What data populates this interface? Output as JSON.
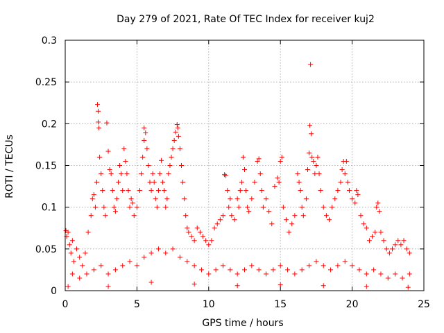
{
  "chart_data": {
    "type": "scatter",
    "title": "Day 279 of 2021, Rate Of TEC Index for receiver kuj2",
    "xlabel": "GPS time / hours",
    "ylabel": "ROTI / TECUs",
    "xlim": [
      0,
      25
    ],
    "ylim": [
      0,
      0.3
    ],
    "xticks": [
      0,
      5,
      10,
      15,
      20,
      25
    ],
    "xtick_labels": [
      "0",
      "5",
      "10",
      "15",
      "20",
      "25"
    ],
    "yticks": [
      0,
      0.05,
      0.1,
      0.15,
      0.2,
      0.25,
      0.3
    ],
    "ytick_labels": [
      "0",
      "0.05",
      "0.1",
      "0.15",
      "0.2",
      "0.25",
      "0.3"
    ],
    "grid": true,
    "marker": "+",
    "color": "#ff0000",
    "series": [
      {
        "name": "ROTI",
        "points": [
          [
            0.05,
            0.072
          ],
          [
            0.1,
            0.065
          ],
          [
            0.2,
            0.07
          ],
          [
            0.3,
            0.055
          ],
          [
            0.4,
            0.045
          ],
          [
            0.5,
            0.06
          ],
          [
            0.6,
            0.035
          ],
          [
            0.8,
            0.05
          ],
          [
            1.0,
            0.04
          ],
          [
            1.2,
            0.03
          ],
          [
            1.4,
            0.045
          ],
          [
            1.6,
            0.07
          ],
          [
            1.8,
            0.09
          ],
          [
            1.9,
            0.11
          ],
          [
            2.0,
            0.115
          ],
          [
            2.1,
            0.1
          ],
          [
            2.2,
            0.13
          ],
          [
            2.25,
            0.223
          ],
          [
            2.3,
            0.215
          ],
          [
            2.3,
            0.202
          ],
          [
            2.35,
            0.195
          ],
          [
            2.4,
            0.16
          ],
          [
            2.5,
            0.14
          ],
          [
            2.6,
            0.12
          ],
          [
            2.7,
            0.1
          ],
          [
            2.8,
            0.09
          ],
          [
            2.9,
            0.201
          ],
          [
            3.0,
            0.167
          ],
          [
            3.1,
            0.145
          ],
          [
            3.2,
            0.14
          ],
          [
            3.3,
            0.12
          ],
          [
            3.4,
            0.1
          ],
          [
            3.5,
            0.095
          ],
          [
            3.6,
            0.11
          ],
          [
            3.7,
            0.13
          ],
          [
            3.8,
            0.15
          ],
          [
            3.9,
            0.14
          ],
          [
            4.0,
            0.12
          ],
          [
            4.1,
            0.17
          ],
          [
            4.2,
            0.155
          ],
          [
            4.3,
            0.14
          ],
          [
            4.4,
            0.12
          ],
          [
            4.5,
            0.1
          ],
          [
            4.6,
            0.11
          ],
          [
            4.7,
            0.105
          ],
          [
            4.8,
            0.09
          ],
          [
            5.0,
            0.1
          ],
          [
            5.2,
            0.12
          ],
          [
            5.3,
            0.14
          ],
          [
            5.4,
            0.16
          ],
          [
            5.5,
            0.18
          ],
          [
            5.5,
            0.195
          ],
          [
            5.6,
            0.189
          ],
          [
            5.7,
            0.17
          ],
          [
            5.8,
            0.15
          ],
          [
            5.9,
            0.13
          ],
          [
            6.0,
            0.12
          ],
          [
            6.1,
            0.14
          ],
          [
            6.2,
            0.13
          ],
          [
            6.3,
            0.11
          ],
          [
            6.4,
            0.1
          ],
          [
            6.5,
            0.12
          ],
          [
            6.6,
            0.14
          ],
          [
            6.7,
            0.156
          ],
          [
            6.8,
            0.13
          ],
          [
            6.9,
            0.12
          ],
          [
            7.0,
            0.1
          ],
          [
            7.1,
            0.11
          ],
          [
            7.2,
            0.14
          ],
          [
            7.3,
            0.15
          ],
          [
            7.4,
            0.16
          ],
          [
            7.5,
            0.17
          ],
          [
            7.6,
            0.18
          ],
          [
            7.7,
            0.19
          ],
          [
            7.8,
            0.199
          ],
          [
            7.85,
            0.195
          ],
          [
            7.9,
            0.185
          ],
          [
            8.0,
            0.17
          ],
          [
            8.1,
            0.15
          ],
          [
            8.2,
            0.13
          ],
          [
            8.3,
            0.11
          ],
          [
            8.4,
            0.09
          ],
          [
            8.5,
            0.075
          ],
          [
            8.6,
            0.07
          ],
          [
            8.8,
            0.065
          ],
          [
            9.0,
            0.06
          ],
          [
            9.2,
            0.075
          ],
          [
            9.4,
            0.07
          ],
          [
            9.6,
            0.065
          ],
          [
            9.8,
            0.06
          ],
          [
            10.0,
            0.055
          ],
          [
            10.2,
            0.06
          ],
          [
            10.4,
            0.075
          ],
          [
            10.6,
            0.08
          ],
          [
            10.8,
            0.085
          ],
          [
            11.0,
            0.09
          ],
          [
            11.1,
            0.139
          ],
          [
            11.2,
            0.138
          ],
          [
            11.3,
            0.12
          ],
          [
            11.4,
            0.1
          ],
          [
            11.5,
            0.11
          ],
          [
            11.6,
            0.09
          ],
          [
            11.8,
            0.085
          ],
          [
            12.0,
            0.11
          ],
          [
            12.1,
            0.1
          ],
          [
            12.2,
            0.12
          ],
          [
            12.3,
            0.13
          ],
          [
            12.4,
            0.16
          ],
          [
            12.5,
            0.145
          ],
          [
            12.6,
            0.12
          ],
          [
            12.7,
            0.1
          ],
          [
            12.8,
            0.095
          ],
          [
            13.0,
            0.11
          ],
          [
            13.2,
            0.13
          ],
          [
            13.4,
            0.155
          ],
          [
            13.5,
            0.158
          ],
          [
            13.6,
            0.14
          ],
          [
            13.7,
            0.12
          ],
          [
            13.8,
            0.1
          ],
          [
            14.0,
            0.11
          ],
          [
            14.2,
            0.095
          ],
          [
            14.4,
            0.08
          ],
          [
            14.6,
            0.125
          ],
          [
            14.8,
            0.135
          ],
          [
            14.9,
            0.13
          ],
          [
            15.0,
            0.155
          ],
          [
            15.1,
            0.16
          ],
          [
            15.2,
            0.1
          ],
          [
            15.4,
            0.085
          ],
          [
            15.6,
            0.07
          ],
          [
            15.8,
            0.08
          ],
          [
            16.0,
            0.09
          ],
          [
            16.2,
            0.14
          ],
          [
            16.3,
            0.13
          ],
          [
            16.4,
            0.12
          ],
          [
            16.5,
            0.1
          ],
          [
            16.6,
            0.09
          ],
          [
            16.8,
            0.11
          ],
          [
            16.9,
            0.145
          ],
          [
            17.0,
            0.165
          ],
          [
            17.05,
            0.198
          ],
          [
            17.1,
            0.271
          ],
          [
            17.15,
            0.188
          ],
          [
            17.2,
            0.16
          ],
          [
            17.3,
            0.155
          ],
          [
            17.4,
            0.14
          ],
          [
            17.5,
            0.15
          ],
          [
            17.6,
            0.16
          ],
          [
            17.7,
            0.14
          ],
          [
            17.8,
            0.12
          ],
          [
            18.0,
            0.1
          ],
          [
            18.2,
            0.09
          ],
          [
            18.4,
            0.085
          ],
          [
            18.6,
            0.1
          ],
          [
            18.8,
            0.11
          ],
          [
            19.0,
            0.12
          ],
          [
            19.2,
            0.13
          ],
          [
            19.3,
            0.145
          ],
          [
            19.4,
            0.155
          ],
          [
            19.5,
            0.14
          ],
          [
            19.6,
            0.155
          ],
          [
            19.7,
            0.13
          ],
          [
            19.8,
            0.12
          ],
          [
            20.0,
            0.11
          ],
          [
            20.2,
            0.105
          ],
          [
            20.3,
            0.12
          ],
          [
            20.4,
            0.115
          ],
          [
            20.6,
            0.09
          ],
          [
            20.8,
            0.08
          ],
          [
            21.0,
            0.075
          ],
          [
            21.2,
            0.06
          ],
          [
            21.4,
            0.065
          ],
          [
            21.6,
            0.07
          ],
          [
            21.7,
            0.1
          ],
          [
            21.8,
            0.105
          ],
          [
            21.9,
            0.095
          ],
          [
            22.0,
            0.07
          ],
          [
            22.2,
            0.06
          ],
          [
            22.4,
            0.05
          ],
          [
            22.6,
            0.045
          ],
          [
            22.8,
            0.05
          ],
          [
            23.0,
            0.055
          ],
          [
            23.2,
            0.06
          ],
          [
            23.4,
            0.055
          ],
          [
            23.6,
            0.06
          ],
          [
            23.8,
            0.05
          ],
          [
            24.0,
            0.045
          ],
          [
            0.5,
            0.02
          ],
          [
            1.0,
            0.015
          ],
          [
            1.5,
            0.02
          ],
          [
            2.0,
            0.025
          ],
          [
            2.5,
            0.03
          ],
          [
            3.0,
            0.02
          ],
          [
            3.5,
            0.025
          ],
          [
            4.0,
            0.03
          ],
          [
            4.5,
            0.035
          ],
          [
            5.0,
            0.03
          ],
          [
            5.5,
            0.04
          ],
          [
            6.0,
            0.045
          ],
          [
            6.5,
            0.05
          ],
          [
            7.0,
            0.045
          ],
          [
            7.5,
            0.05
          ],
          [
            8.0,
            0.04
          ],
          [
            8.5,
            0.035
          ],
          [
            9.0,
            0.03
          ],
          [
            9.5,
            0.025
          ],
          [
            10.0,
            0.02
          ],
          [
            10.5,
            0.025
          ],
          [
            11.0,
            0.03
          ],
          [
            11.5,
            0.025
          ],
          [
            12.0,
            0.02
          ],
          [
            12.5,
            0.025
          ],
          [
            13.0,
            0.03
          ],
          [
            13.5,
            0.025
          ],
          [
            14.0,
            0.02
          ],
          [
            14.5,
            0.025
          ],
          [
            15.0,
            0.03
          ],
          [
            15.5,
            0.025
          ],
          [
            16.0,
            0.02
          ],
          [
            16.5,
            0.025
          ],
          [
            17.0,
            0.03
          ],
          [
            17.5,
            0.035
          ],
          [
            18.0,
            0.03
          ],
          [
            18.5,
            0.025
          ],
          [
            19.0,
            0.03
          ],
          [
            19.5,
            0.035
          ],
          [
            20.0,
            0.03
          ],
          [
            20.5,
            0.025
          ],
          [
            21.0,
            0.02
          ],
          [
            21.5,
            0.025
          ],
          [
            22.0,
            0.02
          ],
          [
            22.5,
            0.015
          ],
          [
            23.0,
            0.02
          ],
          [
            23.5,
            0.015
          ],
          [
            24.0,
            0.02
          ],
          [
            0.2,
            0.005
          ],
          [
            3.0,
            0.005
          ],
          [
            6.0,
            0.01
          ],
          [
            9.0,
            0.008
          ],
          [
            12.0,
            0.006
          ],
          [
            15.0,
            0.007
          ],
          [
            18.0,
            0.006
          ],
          [
            21.0,
            0.005
          ],
          [
            23.9,
            0.004
          ]
        ]
      }
    ]
  }
}
